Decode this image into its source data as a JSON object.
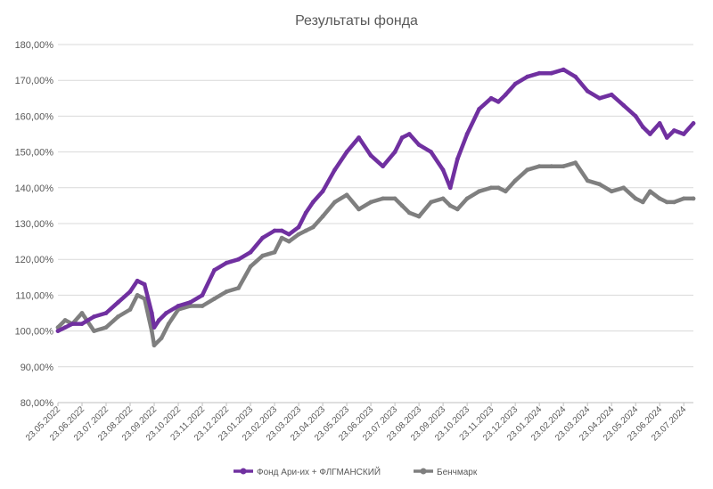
{
  "chart_data": {
    "type": "line",
    "title": "Результаты фонда",
    "xlabel": "",
    "ylabel": "",
    "ylim": [
      80,
      180
    ],
    "y_ticks": [
      80,
      90,
      100,
      110,
      120,
      130,
      140,
      150,
      160,
      170,
      180
    ],
    "y_tick_labels": [
      "80,00%",
      "90,00%",
      "100,00%",
      "110,00%",
      "120,00%",
      "130,00%",
      "140,00%",
      "150,00%",
      "160,00%",
      "170,00%",
      "180,00%"
    ],
    "x_tick_labels": [
      "23.05.2022",
      "23.06.2022",
      "23.07.2022",
      "23.08.2022",
      "23.09.2022",
      "23.10.2022",
      "23.11.2022",
      "23.12.2022",
      "23.01.2023",
      "23.02.2023",
      "23.03.2023",
      "23.04.2023",
      "23.05.2023",
      "23.06.2023",
      "23.07.2023",
      "23.08.2023",
      "23.09.2023",
      "23.10.2023",
      "23.11.2023",
      "23.12.2023",
      "23.01.2024",
      "23.02.2024",
      "23.03.2024",
      "23.04.2024",
      "23.05.2024",
      "23.06.2024",
      "23.07.2024"
    ],
    "grid": true,
    "legend_position": "bottom",
    "series": [
      {
        "name": "Фонд Ари-их + ФЛГМАНСКИЙ",
        "color": "#7030a0",
        "x": [
          0,
          0.3,
          0.6,
          1,
          1.5,
          2,
          2.5,
          3,
          3.3,
          3.6,
          3.9,
          4,
          4.2,
          4.5,
          5,
          5.5,
          6,
          6.5,
          7,
          7.5,
          8,
          8.5,
          9,
          9.3,
          9.6,
          10,
          10.3,
          10.6,
          11,
          11.5,
          12,
          12.5,
          13,
          13.5,
          14,
          14.3,
          14.6,
          15,
          15.5,
          16,
          16.3,
          16.6,
          17,
          17.5,
          18,
          18.3,
          18.6,
          19,
          19.5,
          20,
          20.5,
          21,
          21.5,
          22,
          22.5,
          23,
          23.5,
          24,
          24.3,
          24.6,
          25,
          25.3,
          25.6,
          26,
          26.4
        ],
        "values": [
          100,
          101,
          102,
          102,
          104,
          105,
          108,
          111,
          114,
          113,
          105,
          101,
          103,
          105,
          107,
          108,
          110,
          117,
          119,
          120,
          122,
          126,
          128,
          128,
          127,
          129,
          133,
          136,
          139,
          145,
          150,
          154,
          149,
          146,
          150,
          154,
          155,
          152,
          150,
          145,
          140,
          148,
          155,
          162,
          165,
          164,
          166,
          169,
          171,
          172,
          172,
          173,
          171,
          167,
          165,
          166,
          163,
          160,
          157,
          155,
          158,
          154,
          156,
          155,
          158
        ]
      },
      {
        "name": "Бенчмарк",
        "color": "#7f7f7f",
        "x": [
          0,
          0.3,
          0.6,
          1,
          1.5,
          2,
          2.5,
          3,
          3.3,
          3.6,
          3.9,
          4,
          4.3,
          4.6,
          5,
          5.5,
          6,
          6.5,
          7,
          7.5,
          8,
          8.5,
          9,
          9.3,
          9.6,
          10,
          10.3,
          10.6,
          11,
          11.5,
          12,
          12.5,
          13,
          13.5,
          14,
          14.3,
          14.6,
          15,
          15.5,
          16,
          16.3,
          16.6,
          17,
          17.5,
          18,
          18.3,
          18.6,
          19,
          19.5,
          20,
          20.5,
          21,
          21.5,
          22,
          22.5,
          23,
          23.5,
          24,
          24.3,
          24.6,
          25,
          25.3,
          25.6,
          26,
          26.4
        ],
        "values": [
          101,
          103,
          102,
          105,
          100,
          101,
          104,
          106,
          110,
          109,
          100,
          96,
          98,
          102,
          106,
          107,
          107,
          109,
          111,
          112,
          118,
          121,
          122,
          126,
          125,
          127,
          128,
          129,
          132,
          136,
          138,
          134,
          136,
          137,
          137,
          135,
          133,
          132,
          136,
          137,
          135,
          134,
          137,
          139,
          140,
          140,
          139,
          142,
          145,
          146,
          146,
          146,
          147,
          142,
          141,
          139,
          140,
          137,
          136,
          139,
          137,
          136,
          136,
          137,
          137
        ]
      }
    ]
  }
}
